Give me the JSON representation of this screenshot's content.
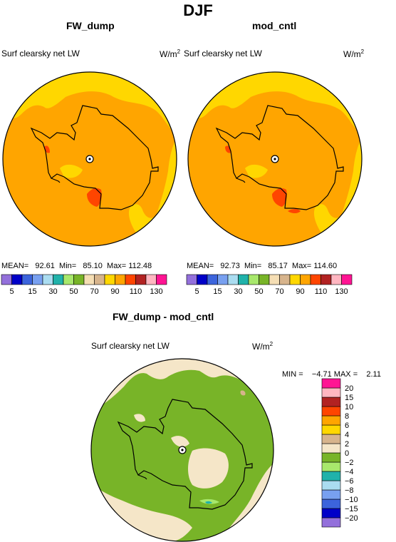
{
  "figure": {
    "title": "DJF",
    "panels": [
      {
        "title": "FW_dump",
        "variable": "Surf clearsky net LW",
        "units": "W/m",
        "units_sup": "2",
        "stats": {
          "mean_label": "MEAN=",
          "mean": "92.61",
          "min_label": "Min=",
          "min": "85.10",
          "max_label": "Max=",
          "max": "112.48"
        }
      },
      {
        "title": "mod_cntl",
        "variable": "Surf clearsky net LW",
        "units": "W/m",
        "units_sup": "2",
        "stats": {
          "mean_label": "MEAN=",
          "mean": "92.73",
          "min_label": "Min=",
          "min": "85.17",
          "max_label": "Max=",
          "max": "114.60"
        }
      },
      {
        "title": "FW_dump - mod_cntl",
        "variable": "Surf clearsky net LW",
        "units": "W/m",
        "units_sup": "2",
        "stats": {
          "min_label": "MIN =",
          "min": "−4.71",
          "max_label": "MAX =",
          "max": "2.11"
        }
      }
    ]
  },
  "chart_data": [
    {
      "type": "heatmap",
      "projection": "south-polar-stereographic",
      "title": "FW_dump",
      "variable": "Surf clearsky net LW",
      "units": "W/m2",
      "levels": [
        5,
        15,
        30,
        50,
        70,
        90,
        110,
        130
      ],
      "level_colors": [
        "#9370db",
        "#0000c8",
        "#3c64dc",
        "#78a0f0",
        "#aadcf0",
        "#20b2aa",
        "#a8e86c",
        "#78b428",
        "#f5deb4",
        "#d7b48c",
        "#ffd700",
        "#ffa500",
        "#ff4500",
        "#b22222",
        "#ffb6c1",
        "#ff1493"
      ],
      "dominant_range": [
        90,
        110
      ],
      "stats": {
        "mean": 92.61,
        "min": 85.1,
        "max": 112.48
      }
    },
    {
      "type": "heatmap",
      "projection": "south-polar-stereographic",
      "title": "mod_cntl",
      "variable": "Surf clearsky net LW",
      "units": "W/m2",
      "levels": [
        5,
        15,
        30,
        50,
        70,
        90,
        110,
        130
      ],
      "dominant_range": [
        90,
        110
      ],
      "stats": {
        "mean": 92.73,
        "min": 85.17,
        "max": 114.6
      }
    },
    {
      "type": "heatmap",
      "projection": "south-polar-stereographic",
      "title": "FW_dump - mod_cntl",
      "variable": "Surf clearsky net LW",
      "units": "W/m2",
      "levels": [
        "−20",
        "−15",
        "−10",
        "−8",
        "−6",
        "−4",
        "−2",
        "0",
        "2",
        "4",
        "6",
        "8",
        "10",
        "15",
        "20"
      ],
      "level_colors": [
        "#9370db",
        "#0000c8",
        "#3c64dc",
        "#78a0f0",
        "#aadcf0",
        "#20b2aa",
        "#a8e86c",
        "#78b428",
        "#f5e6c8",
        "#d7b48c",
        "#ffd700",
        "#ffa500",
        "#ff4500",
        "#b22222",
        "#ffb6c1",
        "#ff1493"
      ],
      "dominant_ranges": [
        [
          -2,
          0
        ],
        [
          0,
          2
        ]
      ],
      "stats": {
        "min": -4.71,
        "max": 2.11
      }
    }
  ]
}
